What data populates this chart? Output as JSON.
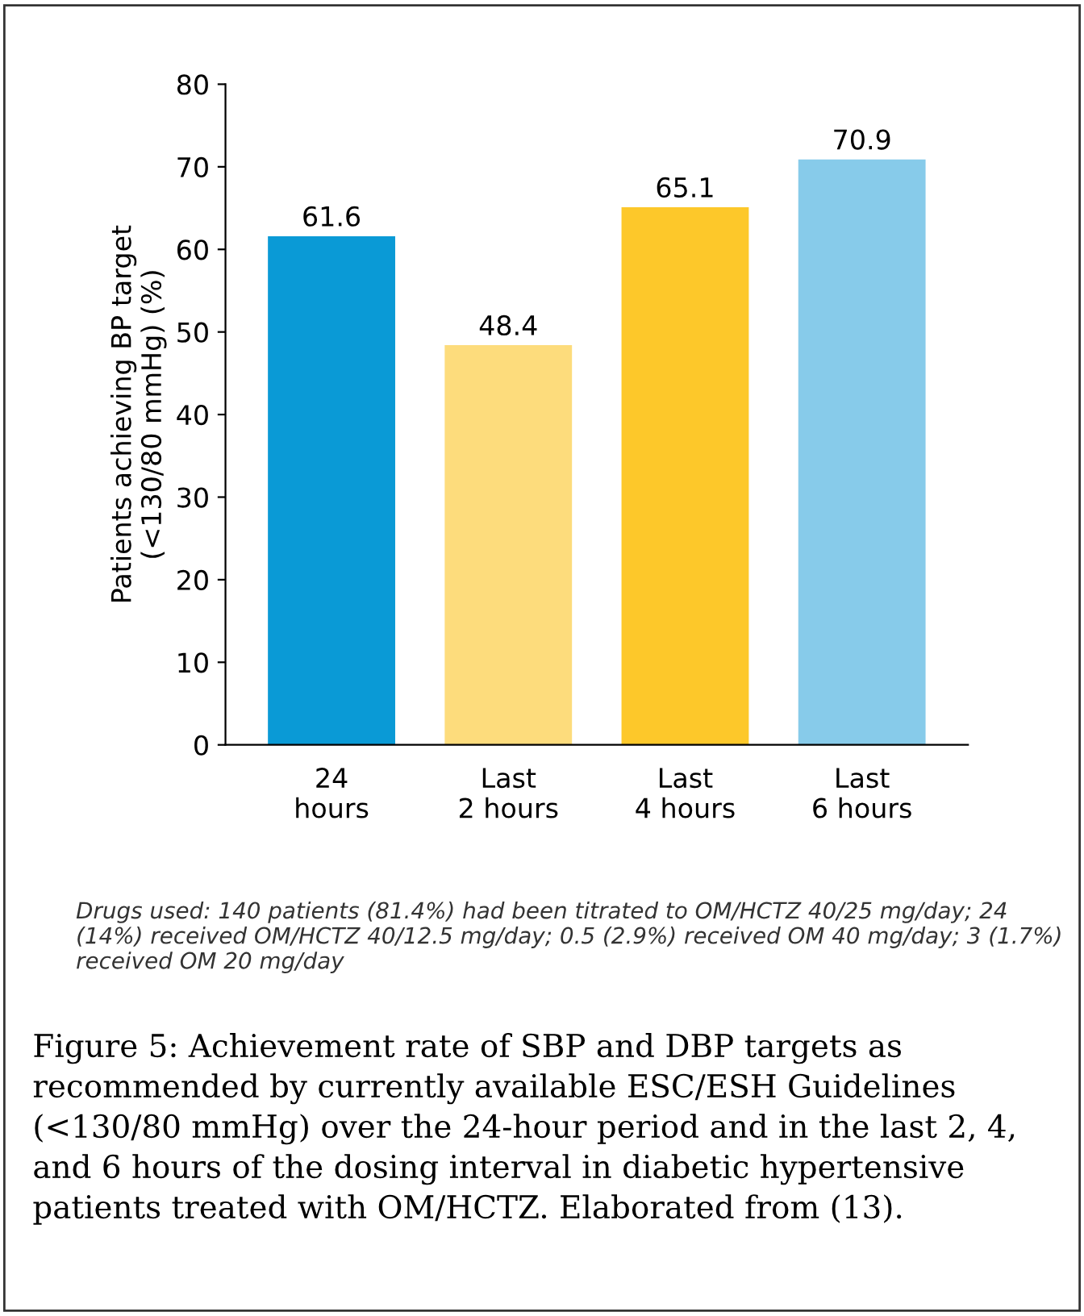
{
  "chart_data": {
    "type": "bar",
    "ylabel": "Patients achieving BP target\n(<130/80 mmHg) (%)",
    "categories": [
      "24\nhours",
      "Last\n2 hours",
      "Last\n4 hours",
      "Last\n6 hours"
    ],
    "values": [
      61.6,
      48.4,
      65.1,
      70.9
    ],
    "colors": [
      "#0a9ad6",
      "#fddc7c",
      "#fdc82a",
      "#87cbea"
    ],
    "ylim": [
      0,
      80
    ],
    "yticks": [
      0,
      10,
      20,
      30,
      40,
      50,
      60,
      70,
      80
    ],
    "grid": false,
    "data_labels": true,
    "annotations": [
      "Drugs used: 140 patients (81.4%) had been titrated to OM/HCTZ 40/25 mg/day; 24 (14%) received OM/HCTZ 40/12.5 mg/day; 0.5 (2.9%) received OM 40 mg/day; 3 (1.7%) received OM 20 mg/day",
      "Figure 5: Achievement rate of SBP and DBP targets as recommended by currently available ESC/ESH Guidelines (<130/80 mmHg) over the 24-hour period and in the last 2, 4, and 6 hours of the dosing interval in diabetic hypertensive patients treated with OM/HCTZ. Elaborated from (13)."
    ]
  }
}
